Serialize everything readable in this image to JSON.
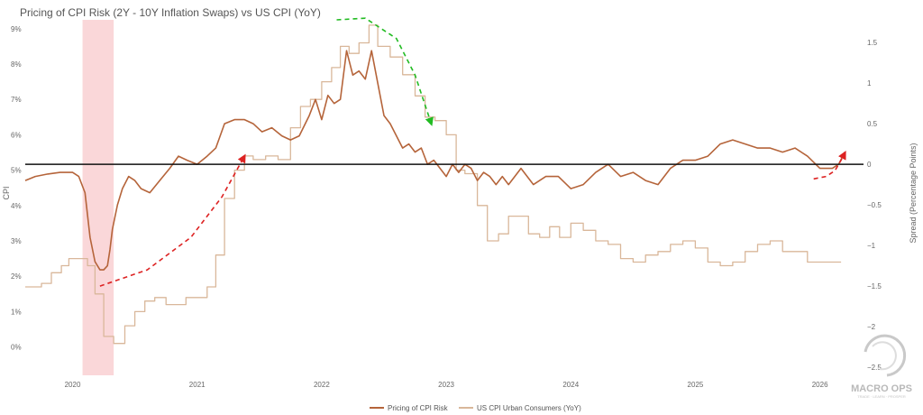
{
  "chart_data": {
    "type": "line",
    "title": "Pricing of CPI Risk (2Y - 10Y Inflation Swaps) vs US CPI (YoY)",
    "xlabel": "",
    "ylabel": "CPI",
    "y2label": "Spread (Percentage Points)",
    "x_ticks": [
      "2020",
      "2021",
      "2022",
      "2023",
      "2024",
      "2025",
      "2026"
    ],
    "y_ticks": [
      "0%",
      "1%",
      "2%",
      "3%",
      "4%",
      "5%",
      "6%",
      "7%",
      "8%",
      "9%"
    ],
    "y2_ticks": [
      "1.5",
      "1",
      "0.5",
      "0",
      "−0.5",
      "−1",
      "−1.5",
      "−2",
      "−2.5"
    ],
    "xlim": [
      2019.62,
      2026.35
    ],
    "ylim": [
      -0.8,
      9.25
    ],
    "y2lim": [
      -2.6,
      1.78
    ],
    "grid": false,
    "legend_position": "bottom-center",
    "zero_line_y2": 0,
    "shaded_region": {
      "x0": 2020.08,
      "x1": 2020.33,
      "color": "#f8c9cc"
    },
    "series": [
      {
        "name": "Pricing of CPI Risk",
        "axis": "right",
        "color": "#b5643a",
        "x": [
          2019.62,
          2019.7,
          2019.8,
          2019.9,
          2020.0,
          2020.05,
          2020.1,
          2020.14,
          2020.18,
          2020.22,
          2020.25,
          2020.28,
          2020.3,
          2020.32,
          2020.36,
          2020.4,
          2020.45,
          2020.5,
          2020.55,
          2020.62,
          2020.7,
          2020.78,
          2020.85,
          2020.92,
          2021.0,
          2021.08,
          2021.15,
          2021.22,
          2021.3,
          2021.38,
          2021.45,
          2021.52,
          2021.6,
          2021.68,
          2021.75,
          2021.82,
          2021.9,
          2021.95,
          2022.0,
          2022.05,
          2022.1,
          2022.15,
          2022.2,
          2022.25,
          2022.3,
          2022.35,
          2022.4,
          2022.45,
          2022.5,
          2022.55,
          2022.6,
          2022.65,
          2022.7,
          2022.75,
          2022.8,
          2022.85,
          2022.9,
          2022.95,
          2023.0,
          2023.05,
          2023.1,
          2023.15,
          2023.2,
          2023.25,
          2023.3,
          2023.35,
          2023.4,
          2023.45,
          2023.5,
          2023.6,
          2023.7,
          2023.8,
          2023.9,
          2024.0,
          2024.1,
          2024.2,
          2024.3,
          2024.4,
          2024.5,
          2024.6,
          2024.7,
          2024.8,
          2024.9,
          2025.0,
          2025.1,
          2025.2,
          2025.3,
          2025.4,
          2025.5,
          2025.6,
          2025.7,
          2025.8,
          2025.9,
          2026.0,
          2026.05,
          2026.1,
          2026.15,
          2026.2
        ],
        "values": [
          -0.2,
          -0.15,
          -0.12,
          -0.1,
          -0.1,
          -0.15,
          -0.35,
          -0.9,
          -1.2,
          -1.3,
          -1.3,
          -1.25,
          -1.05,
          -0.8,
          -0.5,
          -0.3,
          -0.15,
          -0.2,
          -0.3,
          -0.35,
          -0.2,
          -0.05,
          0.1,
          0.05,
          0.0,
          0.1,
          0.2,
          0.5,
          0.55,
          0.55,
          0.5,
          0.4,
          0.45,
          0.35,
          0.3,
          0.35,
          0.6,
          0.8,
          0.55,
          0.85,
          0.75,
          0.8,
          1.4,
          1.1,
          1.15,
          1.05,
          1.4,
          1.0,
          0.6,
          0.5,
          0.35,
          0.2,
          0.25,
          0.15,
          0.2,
          0.0,
          0.05,
          -0.05,
          -0.15,
          0.0,
          -0.1,
          0.0,
          -0.05,
          -0.2,
          -0.1,
          -0.15,
          -0.25,
          -0.15,
          -0.25,
          -0.05,
          -0.25,
          -0.15,
          -0.15,
          -0.3,
          -0.25,
          -0.1,
          0.0,
          -0.15,
          -0.1,
          -0.2,
          -0.25,
          -0.05,
          0.05,
          0.05,
          0.1,
          0.25,
          0.3,
          0.25,
          0.2,
          0.2,
          0.15,
          0.2,
          0.1,
          -0.05,
          -0.05,
          -0.05,
          0.0,
          0.15
        ]
      },
      {
        "name": "US CPI Urban Consumers (YoY)",
        "axis": "left",
        "color": "#d9b79a",
        "x": [
          2019.62,
          2019.68,
          2019.75,
          2019.83,
          2019.91,
          2019.97,
          2020.05,
          2020.12,
          2020.18,
          2020.25,
          2020.33,
          2020.42,
          2020.5,
          2020.58,
          2020.66,
          2020.75,
          2020.83,
          2020.91,
          2021.0,
          2021.08,
          2021.15,
          2021.22,
          2021.3,
          2021.38,
          2021.45,
          2021.55,
          2021.65,
          2021.75,
          2021.83,
          2021.91,
          2022.0,
          2022.08,
          2022.15,
          2022.22,
          2022.3,
          2022.38,
          2022.45,
          2022.55,
          2022.65,
          2022.75,
          2022.83,
          2022.91,
          2023.0,
          2023.08,
          2023.15,
          2023.25,
          2023.33,
          2023.42,
          2023.5,
          2023.58,
          2023.66,
          2023.75,
          2023.83,
          2023.91,
          2024.0,
          2024.1,
          2024.2,
          2024.3,
          2024.4,
          2024.5,
          2024.6,
          2024.7,
          2024.8,
          2024.9,
          2025.0,
          2025.1,
          2025.2,
          2025.3,
          2025.4,
          2025.5,
          2025.6,
          2025.7,
          2025.8,
          2025.9,
          2026.0,
          2026.15
        ],
        "values": [
          1.7,
          1.7,
          1.8,
          2.1,
          2.3,
          2.5,
          2.5,
          2.3,
          1.5,
          0.3,
          0.1,
          0.6,
          1.0,
          1.3,
          1.4,
          1.2,
          1.2,
          1.4,
          1.4,
          1.7,
          2.6,
          4.2,
          5.0,
          5.4,
          5.3,
          5.4,
          5.3,
          6.2,
          6.8,
          7.0,
          7.5,
          7.9,
          8.5,
          8.3,
          8.6,
          9.1,
          8.5,
          8.2,
          7.7,
          7.1,
          6.5,
          6.4,
          6.0,
          5.0,
          4.9,
          4.0,
          3.0,
          3.2,
          3.7,
          3.7,
          3.2,
          3.1,
          3.4,
          3.1,
          3.5,
          3.3,
          3.0,
          2.9,
          2.5,
          2.4,
          2.6,
          2.7,
          2.9,
          3.0,
          2.8,
          2.4,
          2.3,
          2.4,
          2.7,
          2.9,
          3.0,
          2.7,
          2.7,
          2.4,
          2.4,
          2.4
        ]
      }
    ],
    "annotations": [
      {
        "type": "dashed-arrow",
        "color": "#dd2222",
        "x": [
          2020.22,
          2020.6,
          2020.95,
          2021.2,
          2021.38
        ],
        "y2": [
          -1.5,
          -1.3,
          -0.9,
          -0.4,
          0.1
        ],
        "axis": "right"
      },
      {
        "type": "dashed-arrow",
        "color": "#22bb22",
        "x": [
          2022.12,
          2022.35,
          2022.6,
          2022.75,
          2022.88
        ],
        "y2": [
          1.78,
          1.8,
          1.55,
          1.1,
          0.5
        ],
        "axis": "right"
      },
      {
        "type": "dashed-arrow",
        "color": "#dd2222",
        "x": [
          2025.95,
          2026.05,
          2026.12,
          2026.17,
          2026.2
        ],
        "y2": [
          -0.18,
          -0.15,
          -0.08,
          0.05,
          0.14
        ],
        "axis": "right"
      }
    ]
  },
  "legend": {
    "items": [
      {
        "label": "Pricing of CPI Risk",
        "color": "#b5643a"
      },
      {
        "label": "US CPI Urban Consumers (YoY)",
        "color": "#d9b79a"
      }
    ]
  },
  "logo": {
    "text": "MACRO OPS",
    "tagline": "TRADE · LEARN · PROSPER"
  }
}
